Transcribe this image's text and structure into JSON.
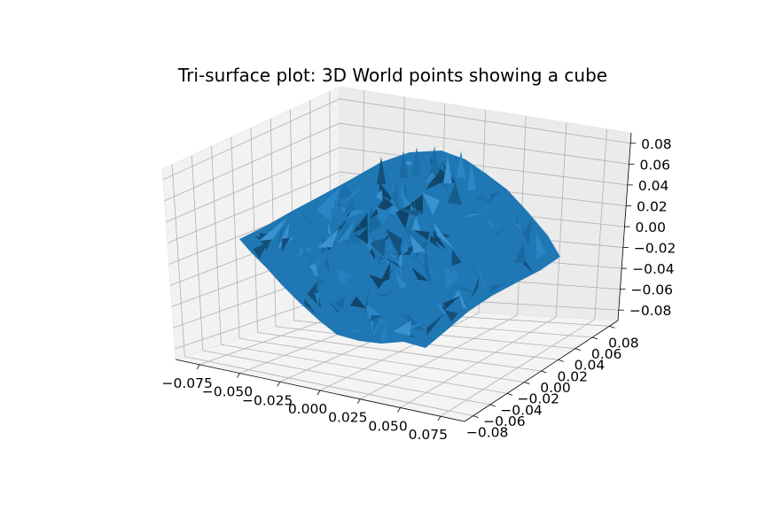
{
  "chart_data": {
    "type": "surface",
    "title": "Tri-surface plot: 3D World points showing a cube",
    "xlabel": "",
    "ylabel": "",
    "zlabel": "",
    "xlim": [
      -0.09,
      0.09
    ],
    "ylim": [
      -0.09,
      0.09
    ],
    "zlim": [
      -0.09,
      0.09
    ],
    "x_ticks": [
      "−0.075",
      "−0.050",
      "−0.025",
      "0.000",
      "0.025",
      "0.050",
      "0.075"
    ],
    "y_ticks": [
      "−0.08",
      "−0.06",
      "−0.04",
      "−0.02",
      "0.00",
      "0.02",
      "0.04",
      "0.06",
      "0.08"
    ],
    "z_ticks": [
      "−0.08",
      "−0.06",
      "−0.04",
      "−0.02",
      "0.00",
      "0.02",
      "0.04",
      "0.06",
      "0.08"
    ],
    "surface_color": "#1f77b4",
    "grid": true,
    "legend": "none"
  }
}
